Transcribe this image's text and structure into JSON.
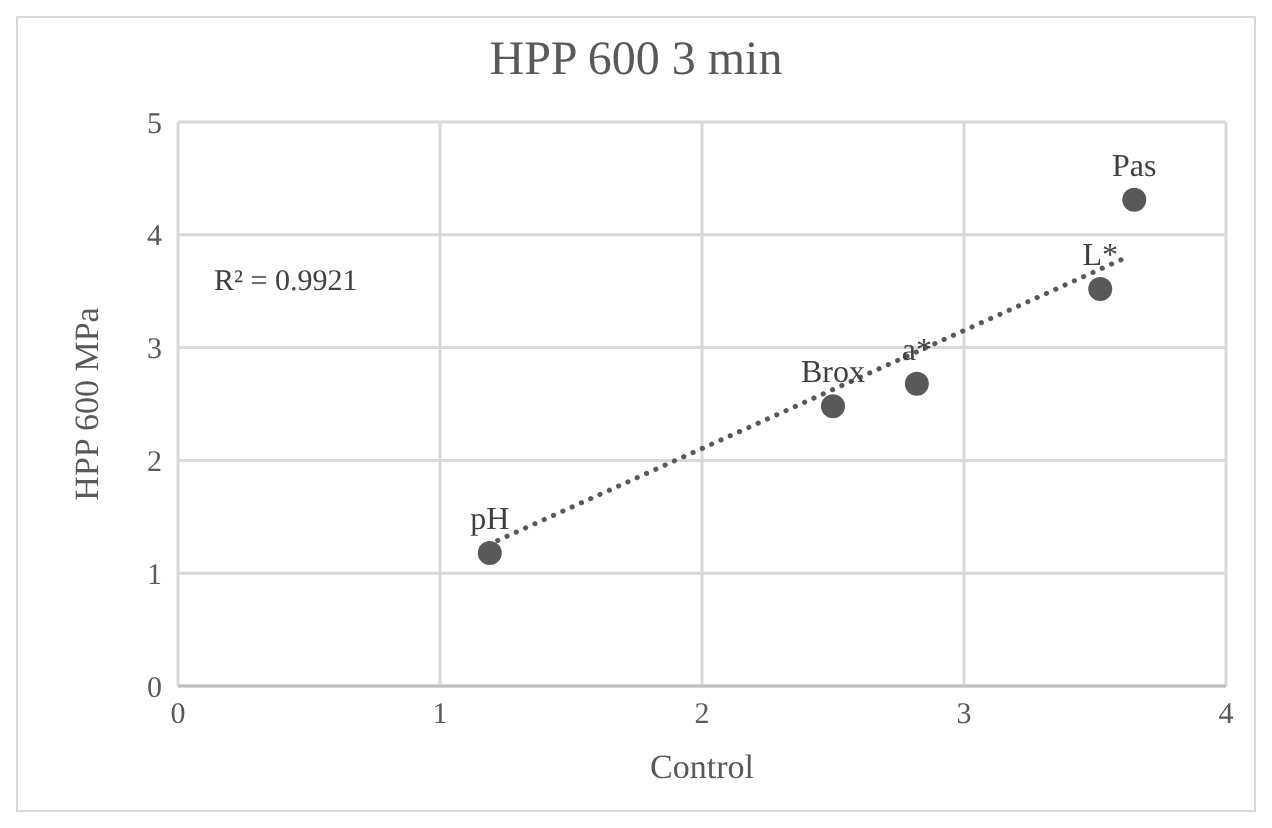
{
  "chart_data": {
    "type": "scatter",
    "title": "HPP 600 3 min",
    "xlabel": "Control",
    "ylabel": "HPP 600 MPa",
    "x": [
      1.19,
      2.5,
      2.82,
      3.52,
      3.65
    ],
    "series": [
      {
        "color": "#595959",
        "values": [
          1.18,
          2.48,
          2.68,
          3.52,
          4.31
        ],
        "marker": "circle"
      },
      {
        "type": "line",
        "color": "#595959",
        "x": [
          1.22,
          3.62
        ],
        "values": [
          1.29,
          3.8
        ],
        "line_style": "dotted",
        "marker": "none"
      }
    ],
    "annotations": [
      "R² = 0.9921",
      {
        "text": "pH",
        "x": 1.19,
        "y": 1.18
      },
      {
        "text": "Brox",
        "x": 2.5,
        "y": 2.48
      },
      {
        "text": "a*",
        "x": 2.82,
        "y": 2.68
      },
      {
        "text": "L*",
        "x": 3.52,
        "y": 3.52
      },
      {
        "text": "Pas",
        "x": 3.65,
        "y": 4.31
      }
    ],
    "xlim": [
      0,
      4
    ],
    "xticks": [
      0,
      1,
      2,
      3,
      4
    ],
    "ylim": [
      0,
      5
    ],
    "yticks": [
      0,
      1,
      2,
      3,
      4,
      5
    ],
    "grid": true,
    "legend": false
  }
}
